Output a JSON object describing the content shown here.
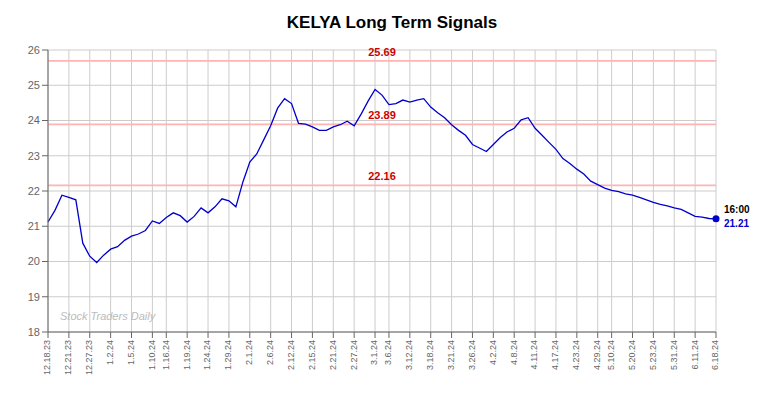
{
  "chart_data": {
    "type": "line",
    "title": "KELYA Long Term Signals",
    "watermark": "Stock Traders Daily",
    "categories": [
      "12.18.23",
      null,
      null,
      "12.21.23",
      null,
      null,
      "12.27.23",
      null,
      null,
      "1.2.24",
      null,
      null,
      "1.5.24",
      null,
      null,
      "1.10.24",
      null,
      "1.16.24",
      null,
      null,
      "1.19.24",
      null,
      null,
      "1.24.24",
      null,
      null,
      "1.29.24",
      null,
      null,
      "2.1.24",
      null,
      null,
      "2.6.24",
      null,
      null,
      "2.12.24",
      null,
      null,
      "2.15.24",
      null,
      null,
      "2.21.24",
      null,
      null,
      "2.27.24",
      null,
      null,
      "3.1.24",
      null,
      "3.6.24",
      null,
      null,
      "3.12.24",
      null,
      null,
      "3.18.24",
      null,
      null,
      "3.21.24",
      null,
      null,
      "3.26.24",
      null,
      null,
      "4.2.24",
      null,
      null,
      "4.8.24",
      null,
      null,
      "4.11.24",
      null,
      null,
      "4.17.24",
      null,
      null,
      "4.23.24",
      null,
      null,
      "4.29.24",
      null,
      "5.10.24",
      null,
      null,
      "5.20.24",
      null,
      null,
      "5.23.24",
      null,
      null,
      "5.31.24",
      null,
      null,
      "6.11.24",
      null,
      null,
      "6.18.24"
    ],
    "values": [
      21.12,
      21.45,
      21.88,
      21.82,
      21.75,
      20.52,
      20.15,
      19.97,
      20.18,
      20.35,
      20.42,
      20.6,
      20.72,
      20.78,
      20.88,
      21.15,
      21.08,
      21.25,
      21.38,
      21.3,
      21.12,
      21.28,
      21.52,
      21.38,
      21.55,
      21.78,
      21.72,
      21.55,
      22.25,
      22.82,
      23.05,
      23.45,
      23.85,
      24.35,
      24.62,
      24.48,
      23.92,
      23.9,
      23.82,
      23.72,
      23.72,
      23.82,
      23.88,
      23.98,
      23.85,
      24.18,
      24.55,
      24.88,
      24.72,
      24.45,
      24.48,
      24.58,
      24.52,
      24.58,
      24.62,
      24.38,
      24.22,
      24.08,
      23.88,
      23.72,
      23.58,
      23.32,
      23.22,
      23.12,
      23.32,
      23.52,
      23.68,
      23.78,
      24.02,
      24.08,
      23.78,
      23.58,
      23.38,
      23.18,
      22.92,
      22.78,
      22.62,
      22.48,
      22.28,
      22.18,
      22.08,
      22.02,
      21.98,
      21.92,
      21.88,
      21.82,
      21.75,
      21.68,
      21.62,
      21.58,
      21.52,
      21.48,
      21.38,
      21.28,
      21.26,
      21.22,
      21.21
    ],
    "color": "#0000cc",
    "ylim": [
      18,
      26
    ],
    "yticks": [
      18,
      19,
      20,
      21,
      22,
      23,
      24,
      25,
      26
    ],
    "grid": true,
    "hlines": [
      {
        "y": 25.69,
        "label": "25.69",
        "color": "#ffb3b3",
        "label_color": "#cc0000"
      },
      {
        "y": 23.89,
        "label": "23.89",
        "color": "#ffb3b3",
        "label_color": "#cc0000"
      },
      {
        "y": 22.16,
        "label": "22.16",
        "color": "#ffb3b3",
        "label_color": "#cc0000"
      }
    ],
    "last_point": {
      "time": "16:00",
      "value_label": "21.21",
      "color": "#0000cc"
    }
  }
}
